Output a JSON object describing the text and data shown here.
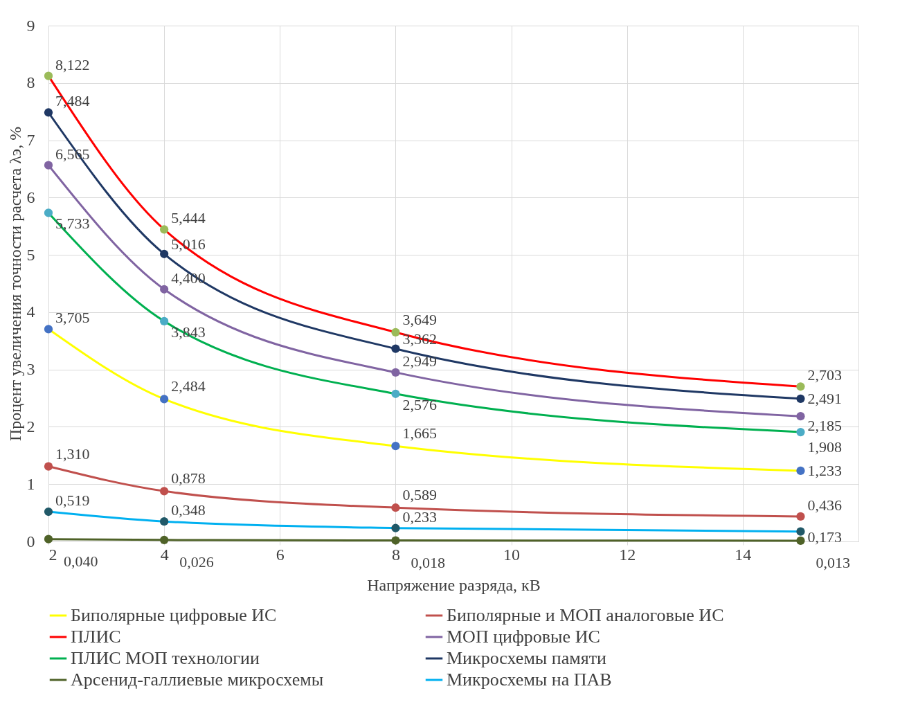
{
  "chart_data": {
    "type": "line",
    "xlabel": "Напряжение разряда, кВ",
    "ylabel": "Процент увеличения точности расчета λэ, %",
    "x": [
      2,
      4,
      8,
      15
    ],
    "xlim": [
      2,
      16
    ],
    "xticks": [
      2,
      4,
      6,
      8,
      10,
      12,
      14
    ],
    "ylim": [
      0,
      9
    ],
    "yticks": [
      0,
      1,
      2,
      3,
      4,
      5,
      6,
      7,
      8,
      9
    ],
    "grid": true,
    "legend": "bottom",
    "marker": "circle",
    "line_style": "solid",
    "series": [
      {
        "name": "Биполярные цифровые ИС",
        "color": "#ffff00",
        "colors": [
          "#4472c4",
          "#4472c4",
          "#4472c4",
          "#4472c4"
        ],
        "values": [
          3.705,
          2.484,
          1.665,
          1.233
        ],
        "value_labels": [
          "3,705",
          "2,484",
          "1,665",
          "1,233"
        ]
      },
      {
        "name": "Биполярные и МОП аналоговые ИС",
        "color": "#c0504d",
        "colors": [
          "#c0504d",
          "#c0504d",
          "#c0504d",
          "#c0504d"
        ],
        "values": [
          1.31,
          0.878,
          0.589,
          0.436
        ],
        "value_labels": [
          "1,310",
          "0,878",
          "0,589",
          "0,436"
        ]
      },
      {
        "name": "ПЛИС",
        "color": "#ff0000",
        "colors": [
          "#9bbb59",
          "#9bbb59",
          "#9bbb59",
          "#9bbb59"
        ],
        "values": [
          8.122,
          5.444,
          3.649,
          2.703
        ],
        "value_labels": [
          "8,122",
          "5,444",
          "3,649",
          "2,703"
        ]
      },
      {
        "name": "МОП цифровые ИС",
        "color": "#8064a2",
        "colors": [
          "#8064a2",
          "#8064a2",
          "#8064a2",
          "#8064a2"
        ],
        "values": [
          6.565,
          4.4,
          2.949,
          2.185
        ],
        "value_labels": [
          "6,565",
          "4,400",
          "2,949",
          "2,185"
        ]
      },
      {
        "name": "ПЛИС МОП технологии",
        "color": "#00b050",
        "colors": [
          "#4bacc6",
          "#4bacc6",
          "#4bacc6",
          "#4bacc6"
        ],
        "values": [
          5.733,
          3.843,
          2.576,
          1.908
        ],
        "value_labels": [
          "5,733",
          "3,843",
          "2,576",
          "1,908"
        ]
      },
      {
        "name": "Микросхемы памяти",
        "color": "#1f3864",
        "colors": [
          "#1f3864",
          "#1f3864",
          "#1f3864",
          "#1f3864"
        ],
        "values": [
          7.484,
          5.016,
          3.362,
          2.491
        ],
        "value_labels": [
          "7,484",
          "5,016",
          "3,362",
          "2,491"
        ]
      },
      {
        "name": "Арсенид-галлиевые микросхемы",
        "color": "#4f6228",
        "colors": [
          "#4f6228",
          "#4f6228",
          "#4f6228",
          "#4f6228"
        ],
        "values": [
          0.04,
          0.026,
          0.018,
          0.013
        ],
        "value_labels": [
          "0,040",
          "0,026",
          "0,018",
          "0,013"
        ]
      },
      {
        "name": "Микросхемы на ПАВ",
        "color": "#00b0f0",
        "colors": [
          "#215968",
          "#215968",
          "#215968",
          "#215968"
        ],
        "values": [
          0.519,
          0.348,
          0.233,
          0.173
        ],
        "value_labels": [
          "0,519",
          "0,348",
          "0,233",
          "0,173"
        ]
      }
    ]
  }
}
